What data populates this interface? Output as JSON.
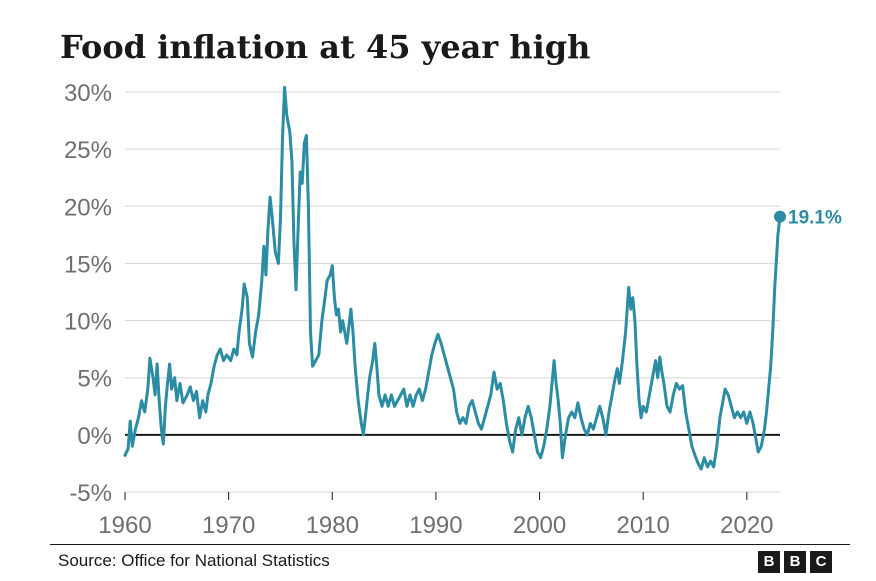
{
  "title": "Food inflation at 45 year high",
  "source": "Source: Office for National Statistics",
  "logo": [
    "B",
    "B",
    "C"
  ],
  "colors": {
    "line": "#2b8ca3",
    "zero_line": "#1a1a1a",
    "grid": "#d6d6d6",
    "tick_text": "#6f6f6f"
  },
  "chart_data": {
    "type": "line",
    "title": "Food inflation at 45 year high",
    "xlabel": "",
    "ylabel": "",
    "xlim": [
      1960,
      2023.2
    ],
    "ylim": [
      -5,
      30
    ],
    "grid": true,
    "x_ticks": [
      1960,
      1970,
      1980,
      1990,
      2000,
      2010,
      2020
    ],
    "x_tick_labels": [
      "1960",
      "1970",
      "1980",
      "1990",
      "2000",
      "2010",
      "2020"
    ],
    "y_ticks": [
      -5,
      0,
      5,
      10,
      15,
      20,
      25,
      30
    ],
    "y_tick_labels": [
      "-5%",
      "0%",
      "5%",
      "10%",
      "15%",
      "20%",
      "25%",
      "30%"
    ],
    "end_label": "19.1%",
    "series": [
      {
        "values": [
          [
            1960.0,
            -1.8
          ],
          [
            1960.3,
            -1.2
          ],
          [
            1960.5,
            1.2
          ],
          [
            1960.7,
            -1.0
          ],
          [
            1961.0,
            0.5
          ],
          [
            1961.3,
            1.5
          ],
          [
            1961.6,
            3.0
          ],
          [
            1961.9,
            2.0
          ],
          [
            1962.2,
            4.0
          ],
          [
            1962.4,
            6.7
          ],
          [
            1962.7,
            5.0
          ],
          [
            1962.9,
            3.5
          ],
          [
            1963.1,
            6.2
          ],
          [
            1963.3,
            3.0
          ],
          [
            1963.5,
            0.5
          ],
          [
            1963.7,
            -0.8
          ],
          [
            1963.9,
            2.5
          ],
          [
            1964.1,
            4.5
          ],
          [
            1964.3,
            6.2
          ],
          [
            1964.5,
            4.0
          ],
          [
            1964.8,
            5.0
          ],
          [
            1965.0,
            3.0
          ],
          [
            1965.3,
            4.5
          ],
          [
            1965.6,
            2.8
          ],
          [
            1966.0,
            3.5
          ],
          [
            1966.3,
            4.2
          ],
          [
            1966.6,
            3.0
          ],
          [
            1966.9,
            3.8
          ],
          [
            1967.2,
            1.5
          ],
          [
            1967.5,
            3.0
          ],
          [
            1967.8,
            2.0
          ],
          [
            1968.0,
            3.5
          ],
          [
            1968.3,
            4.5
          ],
          [
            1968.6,
            6.0
          ],
          [
            1968.9,
            7.0
          ],
          [
            1969.2,
            7.5
          ],
          [
            1969.5,
            6.5
          ],
          [
            1969.8,
            7.0
          ],
          [
            1970.2,
            6.5
          ],
          [
            1970.5,
            7.5
          ],
          [
            1970.8,
            7.0
          ],
          [
            1971.0,
            9.0
          ],
          [
            1971.3,
            11.0
          ],
          [
            1971.5,
            13.2
          ],
          [
            1971.8,
            12.0
          ],
          [
            1972.0,
            8.0
          ],
          [
            1972.3,
            6.8
          ],
          [
            1972.6,
            9.0
          ],
          [
            1972.9,
            10.5
          ],
          [
            1973.2,
            13.5
          ],
          [
            1973.4,
            16.5
          ],
          [
            1973.6,
            14.0
          ],
          [
            1973.8,
            18.0
          ],
          [
            1974.0,
            20.8
          ],
          [
            1974.2,
            19.0
          ],
          [
            1974.5,
            16.0
          ],
          [
            1974.8,
            15.0
          ],
          [
            1975.0,
            19.0
          ],
          [
            1975.2,
            26.0
          ],
          [
            1975.4,
            30.4
          ],
          [
            1975.6,
            28.0
          ],
          [
            1975.9,
            26.5
          ],
          [
            1976.1,
            24.0
          ],
          [
            1976.3,
            17.0
          ],
          [
            1976.5,
            12.7
          ],
          [
            1976.7,
            18.0
          ],
          [
            1976.9,
            23.0
          ],
          [
            1977.1,
            22.0
          ],
          [
            1977.3,
            25.5
          ],
          [
            1977.5,
            26.2
          ],
          [
            1977.7,
            20.0
          ],
          [
            1977.9,
            9.0
          ],
          [
            1978.1,
            6.0
          ],
          [
            1978.4,
            6.5
          ],
          [
            1978.7,
            7.0
          ],
          [
            1979.0,
            10.0
          ],
          [
            1979.3,
            12.0
          ],
          [
            1979.5,
            13.5
          ],
          [
            1979.8,
            14.0
          ],
          [
            1980.0,
            14.8
          ],
          [
            1980.2,
            12.0
          ],
          [
            1980.4,
            10.5
          ],
          [
            1980.6,
            11.0
          ],
          [
            1980.8,
            9.0
          ],
          [
            1981.0,
            10.0
          ],
          [
            1981.2,
            9.0
          ],
          [
            1981.4,
            8.0
          ],
          [
            1981.6,
            9.5
          ],
          [
            1981.8,
            11.0
          ],
          [
            1982.0,
            9.0
          ],
          [
            1982.2,
            6.0
          ],
          [
            1982.5,
            3.0
          ],
          [
            1982.8,
            1.0
          ],
          [
            1983.0,
            0.0
          ],
          [
            1983.3,
            2.5
          ],
          [
            1983.6,
            5.0
          ],
          [
            1983.9,
            6.5
          ],
          [
            1984.1,
            8.0
          ],
          [
            1984.3,
            6.0
          ],
          [
            1984.5,
            3.5
          ],
          [
            1984.8,
            2.5
          ],
          [
            1985.1,
            3.5
          ],
          [
            1985.4,
            2.5
          ],
          [
            1985.7,
            3.5
          ],
          [
            1986.0,
            2.5
          ],
          [
            1986.3,
            3.0
          ],
          [
            1986.6,
            3.5
          ],
          [
            1986.9,
            4.0
          ],
          [
            1987.2,
            2.5
          ],
          [
            1987.5,
            3.5
          ],
          [
            1987.8,
            2.5
          ],
          [
            1988.1,
            3.5
          ],
          [
            1988.4,
            4.0
          ],
          [
            1988.7,
            3.0
          ],
          [
            1989.0,
            4.0
          ],
          [
            1989.3,
            5.5
          ],
          [
            1989.6,
            7.0
          ],
          [
            1989.9,
            8.0
          ],
          [
            1990.2,
            8.8
          ],
          [
            1990.5,
            8.0
          ],
          [
            1990.8,
            7.0
          ],
          [
            1991.1,
            6.0
          ],
          [
            1991.4,
            5.0
          ],
          [
            1991.7,
            4.0
          ],
          [
            1992.0,
            2.0
          ],
          [
            1992.3,
            1.0
          ],
          [
            1992.6,
            1.5
          ],
          [
            1992.9,
            1.0
          ],
          [
            1993.2,
            2.5
          ],
          [
            1993.5,
            3.0
          ],
          [
            1993.8,
            2.0
          ],
          [
            1994.1,
            1.0
          ],
          [
            1994.4,
            0.5
          ],
          [
            1994.7,
            1.5
          ],
          [
            1995.0,
            2.5
          ],
          [
            1995.3,
            3.5
          ],
          [
            1995.6,
            5.5
          ],
          [
            1995.9,
            4.0
          ],
          [
            1996.2,
            4.5
          ],
          [
            1996.5,
            3.0
          ],
          [
            1996.8,
            1.0
          ],
          [
            1997.1,
            -0.5
          ],
          [
            1997.4,
            -1.5
          ],
          [
            1997.7,
            0.5
          ],
          [
            1998.0,
            1.5
          ],
          [
            1998.3,
            0.0
          ],
          [
            1998.6,
            1.5
          ],
          [
            1998.9,
            2.5
          ],
          [
            1999.2,
            1.5
          ],
          [
            1999.5,
            0.0
          ],
          [
            1999.8,
            -1.5
          ],
          [
            2000.1,
            -2.0
          ],
          [
            2000.4,
            -1.0
          ],
          [
            2000.7,
            0.5
          ],
          [
            2001.0,
            2.5
          ],
          [
            2001.2,
            4.5
          ],
          [
            2001.4,
            6.5
          ],
          [
            2001.6,
            4.5
          ],
          [
            2001.8,
            3.0
          ],
          [
            2002.0,
            1.0
          ],
          [
            2002.2,
            -2.0
          ],
          [
            2002.5,
            0.0
          ],
          [
            2002.8,
            1.5
          ],
          [
            2003.1,
            2.0
          ],
          [
            2003.4,
            1.5
          ],
          [
            2003.7,
            2.8
          ],
          [
            2004.0,
            1.5
          ],
          [
            2004.3,
            0.5
          ],
          [
            2004.6,
            0.0
          ],
          [
            2004.9,
            1.0
          ],
          [
            2005.2,
            0.5
          ],
          [
            2005.5,
            1.5
          ],
          [
            2005.8,
            2.5
          ],
          [
            2006.1,
            1.5
          ],
          [
            2006.4,
            0.0
          ],
          [
            2006.7,
            2.0
          ],
          [
            2007.0,
            3.5
          ],
          [
            2007.3,
            5.0
          ],
          [
            2007.5,
            5.8
          ],
          [
            2007.7,
            4.5
          ],
          [
            2008.0,
            6.5
          ],
          [
            2008.3,
            9.0
          ],
          [
            2008.6,
            12.9
          ],
          [
            2008.8,
            11.0
          ],
          [
            2009.0,
            12.0
          ],
          [
            2009.2,
            10.0
          ],
          [
            2009.4,
            6.0
          ],
          [
            2009.6,
            3.0
          ],
          [
            2009.8,
            1.5
          ],
          [
            2010.0,
            2.5
          ],
          [
            2010.3,
            2.0
          ],
          [
            2010.6,
            3.5
          ],
          [
            2010.9,
            5.0
          ],
          [
            2011.2,
            6.5
          ],
          [
            2011.4,
            5.0
          ],
          [
            2011.6,
            6.8
          ],
          [
            2011.8,
            5.5
          ],
          [
            2012.0,
            4.5
          ],
          [
            2012.3,
            2.5
          ],
          [
            2012.6,
            2.0
          ],
          [
            2012.9,
            3.5
          ],
          [
            2013.2,
            4.5
          ],
          [
            2013.5,
            4.0
          ],
          [
            2013.8,
            4.3
          ],
          [
            2014.1,
            2.0
          ],
          [
            2014.4,
            0.5
          ],
          [
            2014.7,
            -1.0
          ],
          [
            2015.0,
            -1.8
          ],
          [
            2015.3,
            -2.5
          ],
          [
            2015.6,
            -3.0
          ],
          [
            2015.9,
            -2.0
          ],
          [
            2016.2,
            -2.8
          ],
          [
            2016.5,
            -2.3
          ],
          [
            2016.8,
            -2.8
          ],
          [
            2017.1,
            -1.0
          ],
          [
            2017.4,
            1.5
          ],
          [
            2017.7,
            3.0
          ],
          [
            2017.9,
            4.0
          ],
          [
            2018.2,
            3.5
          ],
          [
            2018.5,
            2.5
          ],
          [
            2018.8,
            1.5
          ],
          [
            2019.1,
            2.0
          ],
          [
            2019.4,
            1.5
          ],
          [
            2019.7,
            2.0
          ],
          [
            2020.0,
            1.0
          ],
          [
            2020.3,
            2.0
          ],
          [
            2020.6,
            1.0
          ],
          [
            2020.9,
            -0.5
          ],
          [
            2021.1,
            -1.5
          ],
          [
            2021.4,
            -1.0
          ],
          [
            2021.7,
            0.5
          ],
          [
            2021.9,
            2.0
          ],
          [
            2022.1,
            4.0
          ],
          [
            2022.3,
            6.0
          ],
          [
            2022.5,
            9.0
          ],
          [
            2022.7,
            13.0
          ],
          [
            2022.9,
            16.0
          ],
          [
            2023.0,
            17.5
          ],
          [
            2023.2,
            19.1
          ]
        ]
      }
    ]
  }
}
